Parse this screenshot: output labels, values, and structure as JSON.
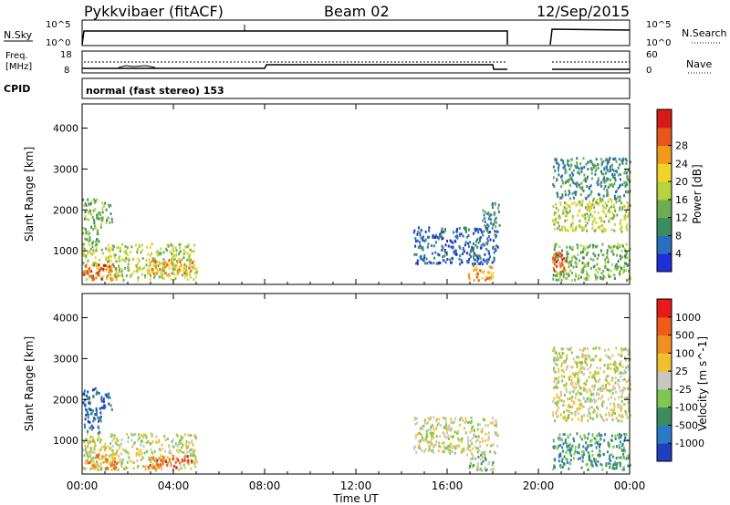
{
  "header": {
    "station": "Pykkvibaer (fitACF)",
    "beam": "Beam 02",
    "date": "12/Sep/2015"
  },
  "strips": {
    "nsky_label": "N.Sky",
    "nsearch_label": "N.Search",
    "freq_label_1": "Freq.",
    "freq_label_2": "[MHz]",
    "nave_label": "Nave",
    "cpid_label": "CPID",
    "cpid_text": "normal (fast stereo) 153",
    "noise_left_ticks": [
      "10^5",
      "10^0"
    ],
    "noise_right_ticks": [
      "10^5",
      "10^0"
    ],
    "freq_ticks": [
      "18",
      "8"
    ],
    "nave_ticks": [
      "60",
      "0"
    ]
  },
  "chart_data": [
    {
      "type": "heatmap",
      "name": "power",
      "ylabel": "Slant Range [km]",
      "xlabel": "Time UT",
      "xlim_hours": [
        0,
        24
      ],
      "ylim_km": [
        180,
        4590
      ],
      "x_ticks": [
        "00:00",
        "04:00",
        "08:00",
        "12:00",
        "16:00",
        "20:00",
        "00:00"
      ],
      "y_ticks": [
        1000,
        2000,
        3000,
        4000
      ],
      "colorbar": {
        "label": "Power [dB]",
        "ticks": [
          4,
          8,
          12,
          16,
          20,
          24,
          28
        ],
        "colors": [
          "#1f2fd6",
          "#2a6fbf",
          "#3c8c5f",
          "#6cae52",
          "#b6d43c",
          "#f0d22a",
          "#f09a1a",
          "#e8561b",
          "#d61a16"
        ]
      },
      "data_gap_hours": [
        18.4,
        20.6
      ],
      "clusters": [
        {
          "t": [
            0.0,
            5.0
          ],
          "r": [
            300,
            1200
          ],
          "level": 4
        },
        {
          "t": [
            0.0,
            1.5
          ],
          "r": [
            300,
            700
          ],
          "level": 7
        },
        {
          "t": [
            2.8,
            4.8
          ],
          "r": [
            450,
            800
          ],
          "level": 6
        },
        {
          "t": [
            0.0,
            0.8
          ],
          "r": [
            1200,
            2300
          ],
          "level": 3
        },
        {
          "t": [
            0.8,
            1.3
          ],
          "r": [
            1700,
            2200
          ],
          "level": 3
        },
        {
          "t": [
            14.5,
            18.2
          ],
          "r": [
            700,
            1600
          ],
          "level": 1
        },
        {
          "t": [
            16.8,
            18.0
          ],
          "r": [
            300,
            700
          ],
          "level": 6
        },
        {
          "t": [
            17.5,
            18.3
          ],
          "r": [
            1600,
            2200
          ],
          "level": 2
        },
        {
          "t": [
            20.6,
            24.0
          ],
          "r": [
            1500,
            2300
          ],
          "level": 4
        },
        {
          "t": [
            20.6,
            24.0
          ],
          "r": [
            2300,
            3300
          ],
          "level": 2
        },
        {
          "t": [
            20.6,
            24.0
          ],
          "r": [
            300,
            1200
          ],
          "level": 3
        },
        {
          "t": [
            20.6,
            21.2
          ],
          "r": [
            400,
            1000
          ],
          "level": 7
        }
      ]
    },
    {
      "type": "heatmap",
      "name": "velocity",
      "ylabel": "Slant Range [km]",
      "xlabel": "Time UT",
      "xlim_hours": [
        0,
        24
      ],
      "ylim_km": [
        180,
        4590
      ],
      "x_ticks": [
        "00:00",
        "04:00",
        "08:00",
        "12:00",
        "16:00",
        "20:00",
        "00:00"
      ],
      "y_ticks": [
        1000,
        2000,
        3000,
        4000
      ],
      "colorbar": {
        "label": "Velocity [m s^-1]",
        "ticks": [
          1000,
          500,
          100,
          25,
          -25,
          -100,
          -500,
          -1000
        ],
        "colors": [
          "#1f3fbf",
          "#2a7ac8",
          "#3c8c5f",
          "#7ec850",
          "#c8c8c0",
          "#f0c030",
          "#f09020",
          "#f05a1a",
          "#e61a16"
        ]
      },
      "data_gap_hours": [
        18.4,
        20.6
      ],
      "clusters": [
        {
          "t": [
            0.0,
            5.0
          ],
          "r": [
            300,
            1200
          ],
          "level": 4
        },
        {
          "t": [
            0.0,
            1.5
          ],
          "r": [
            300,
            700
          ],
          "level": 6
        },
        {
          "t": [
            2.8,
            4.8
          ],
          "r": [
            350,
            650
          ],
          "level": 7
        },
        {
          "t": [
            0.0,
            0.8
          ],
          "r": [
            1200,
            2300
          ],
          "level": 1
        },
        {
          "t": [
            0.8,
            1.3
          ],
          "r": [
            1700,
            2200
          ],
          "level": 1
        },
        {
          "t": [
            14.5,
            18.2
          ],
          "r": [
            700,
            1600
          ],
          "level": 4
        },
        {
          "t": [
            16.8,
            18.0
          ],
          "r": [
            300,
            700
          ],
          "level": 3
        },
        {
          "t": [
            20.6,
            24.0
          ],
          "r": [
            1500,
            2300
          ],
          "level": 4
        },
        {
          "t": [
            20.6,
            24.0
          ],
          "r": [
            2300,
            3300
          ],
          "level": 4
        },
        {
          "t": [
            20.6,
            24.0
          ],
          "r": [
            300,
            1200
          ],
          "level": 2
        }
      ]
    }
  ]
}
